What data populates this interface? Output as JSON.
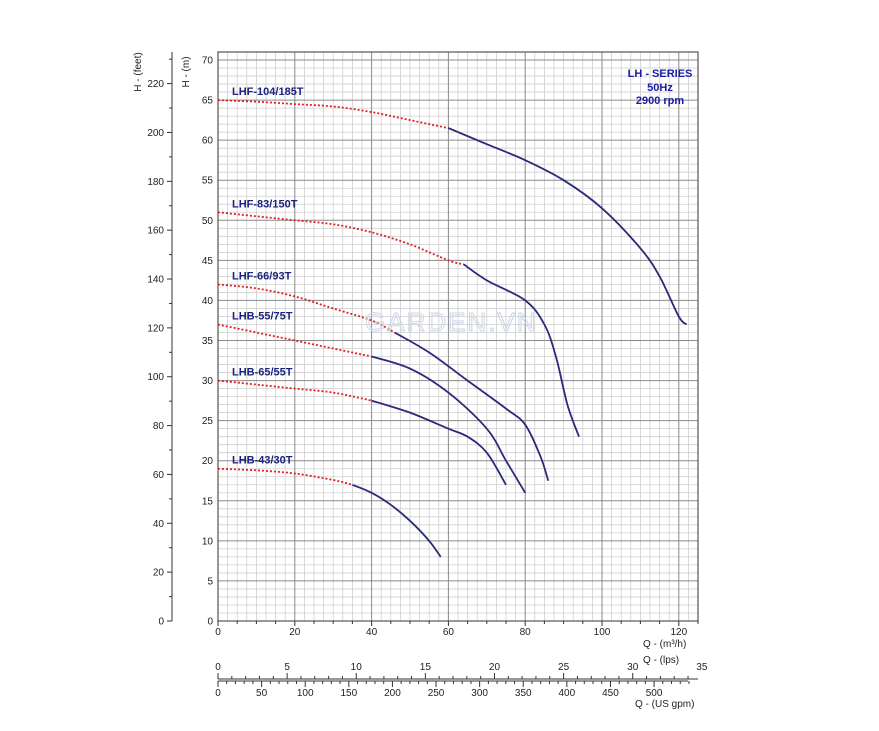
{
  "watermark": "GARDEN.VN",
  "info": [
    "LH - SERIES",
    "50Hz",
    "2900 rpm"
  ],
  "colors": {
    "curve": "#2a2a7a",
    "dotted": "#e02020",
    "label": "#1a237e",
    "info": "#1a1aa6",
    "grid": "#9a9a9a"
  },
  "chart_data": {
    "type": "line",
    "title": "",
    "xlabel": "Q - (m³/h)",
    "ylabel": "H - (m)",
    "xlim": [
      0,
      125
    ],
    "ylim": [
      0,
      71
    ],
    "xticks": [
      0,
      20,
      40,
      60,
      80,
      100,
      120
    ],
    "yticks": [
      0,
      5,
      10,
      15,
      20,
      25,
      30,
      35,
      40,
      45,
      50,
      55,
      60,
      65,
      70
    ],
    "secondary_y": {
      "label": "H - (feet)",
      "ticks": [
        0,
        20,
        40,
        60,
        80,
        100,
        120,
        140,
        160,
        180,
        200,
        220
      ]
    },
    "secondary_x": [
      {
        "label": "Q - (lps)",
        "ticks": [
          0,
          5,
          10,
          15,
          20,
          25,
          30,
          35
        ]
      },
      {
        "label": "Q - (US gpm)",
        "ticks": [
          0,
          50,
          100,
          150,
          200,
          250,
          300,
          350,
          400,
          450,
          500
        ]
      }
    ],
    "grid": true,
    "series": [
      {
        "name": "LHF-104/185T",
        "dotted_until": 60,
        "x": [
          0,
          10,
          20,
          30,
          40,
          50,
          60,
          70,
          80,
          90,
          100,
          110,
          115,
          120,
          122
        ],
        "y": [
          65,
          64.8,
          64.5,
          64.2,
          63.5,
          62.5,
          61.5,
          59.5,
          57.5,
          55,
          51.5,
          46.5,
          43,
          38,
          37
        ]
      },
      {
        "name": "LHF-83/150T",
        "dotted_until": 64,
        "x": [
          0,
          10,
          20,
          30,
          40,
          50,
          60,
          64,
          70,
          80,
          85,
          88,
          91,
          94
        ],
        "y": [
          51,
          50.5,
          50,
          49.5,
          48.5,
          47,
          45,
          44.5,
          42.5,
          40,
          37,
          33,
          27,
          23
        ]
      },
      {
        "name": "LHF-66/93T",
        "dotted_until": 46,
        "x": [
          0,
          10,
          20,
          30,
          40,
          46,
          55,
          65,
          75,
          80,
          84,
          86
        ],
        "y": [
          42,
          41.5,
          40.5,
          39,
          37.5,
          36,
          33.5,
          30,
          26.5,
          24.5,
          20.5,
          17.5
        ]
      },
      {
        "name": "LHB-55/75T",
        "dotted_until": 40,
        "x": [
          0,
          10,
          20,
          30,
          40,
          50,
          60,
          70,
          75,
          80
        ],
        "y": [
          37,
          36,
          35,
          34,
          33,
          31.5,
          28.5,
          24,
          20,
          16
        ]
      },
      {
        "name": "LHB-65/55T",
        "dotted_until": 40,
        "x": [
          0,
          10,
          20,
          30,
          40,
          50,
          60,
          65,
          70,
          75
        ],
        "y": [
          30,
          29.5,
          29,
          28.5,
          27.5,
          26,
          24,
          23,
          21,
          17
        ]
      },
      {
        "name": "LHB-43/30T",
        "dotted_until": 35,
        "x": [
          0,
          10,
          20,
          30,
          35,
          40,
          45,
          50,
          55,
          58
        ],
        "y": [
          19,
          18.8,
          18.4,
          17.6,
          17,
          16,
          14.5,
          12.5,
          10,
          8
        ]
      }
    ]
  }
}
